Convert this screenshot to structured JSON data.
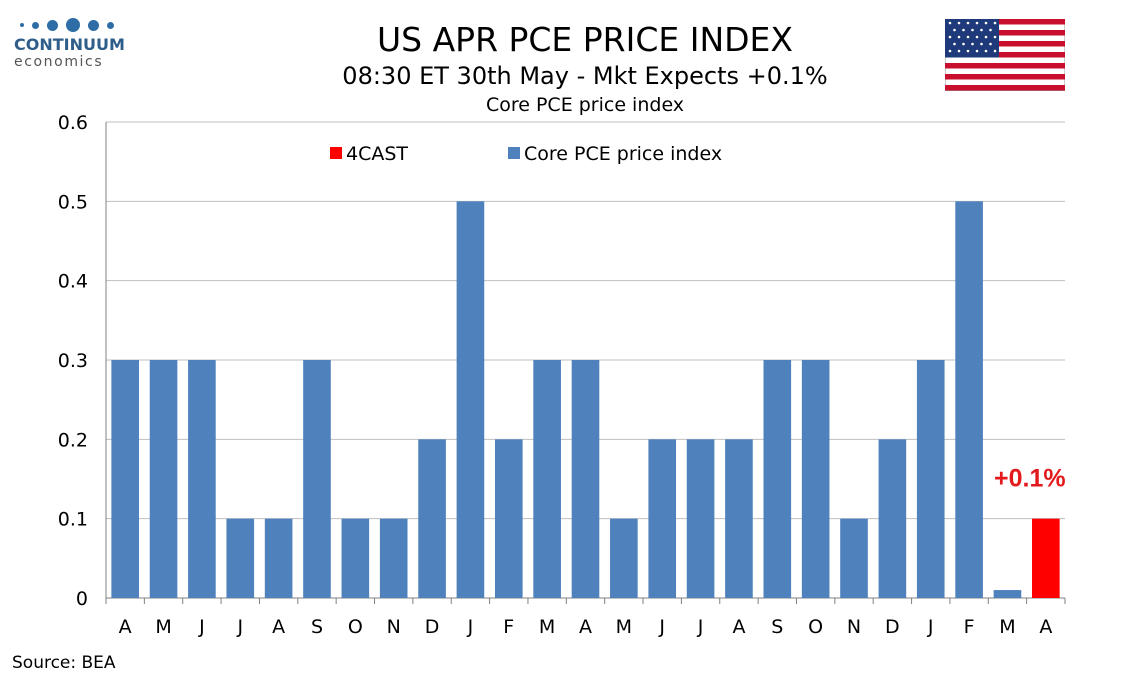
{
  "header": {
    "title": "US APR PCE PRICE INDEX",
    "subtitle": "08:30 ET 30th May - Mkt Expects +0.1%",
    "logo_name": "CONTINUUM",
    "logo_sub": "economics"
  },
  "footer": {
    "source": "Source: BEA"
  },
  "colors": {
    "actual": "#4f81bd",
    "forecast": "#ff0000",
    "grid": "#bfbfbf",
    "annotation": "#e31a1c"
  },
  "chart_data": {
    "type": "bar",
    "title": "Core PCE price index",
    "categories": [
      "A",
      "M",
      "J",
      "J",
      "A",
      "S",
      "O",
      "N",
      "D",
      "J",
      "F",
      "M",
      "A",
      "M",
      "J",
      "J",
      "A",
      "S",
      "O",
      "N",
      "D",
      "J",
      "F",
      "M",
      "A"
    ],
    "series": [
      {
        "name": "Core PCE price index",
        "values": [
          0.3,
          0.3,
          0.3,
          0.1,
          0.1,
          0.3,
          0.1,
          0.1,
          0.2,
          0.5,
          0.2,
          0.3,
          0.3,
          0.1,
          0.2,
          0.2,
          0.2,
          0.3,
          0.3,
          0.1,
          0.2,
          0.3,
          0.5,
          0.01,
          null
        ]
      },
      {
        "name": "4CAST",
        "values": [
          null,
          null,
          null,
          null,
          null,
          null,
          null,
          null,
          null,
          null,
          null,
          null,
          null,
          null,
          null,
          null,
          null,
          null,
          null,
          null,
          null,
          null,
          null,
          null,
          0.1
        ]
      }
    ],
    "legend_order": [
      "4CAST",
      "Core PCE price index"
    ],
    "legend_position": "top",
    "yticks": [
      "0",
      "0.1",
      "0.2",
      "0.3",
      "0.4",
      "0.5",
      "0.6"
    ],
    "ylim": [
      0,
      0.6
    ],
    "grid": true,
    "annotation": {
      "text": "+0.1%",
      "category_index": 24,
      "value": 0.1
    }
  }
}
